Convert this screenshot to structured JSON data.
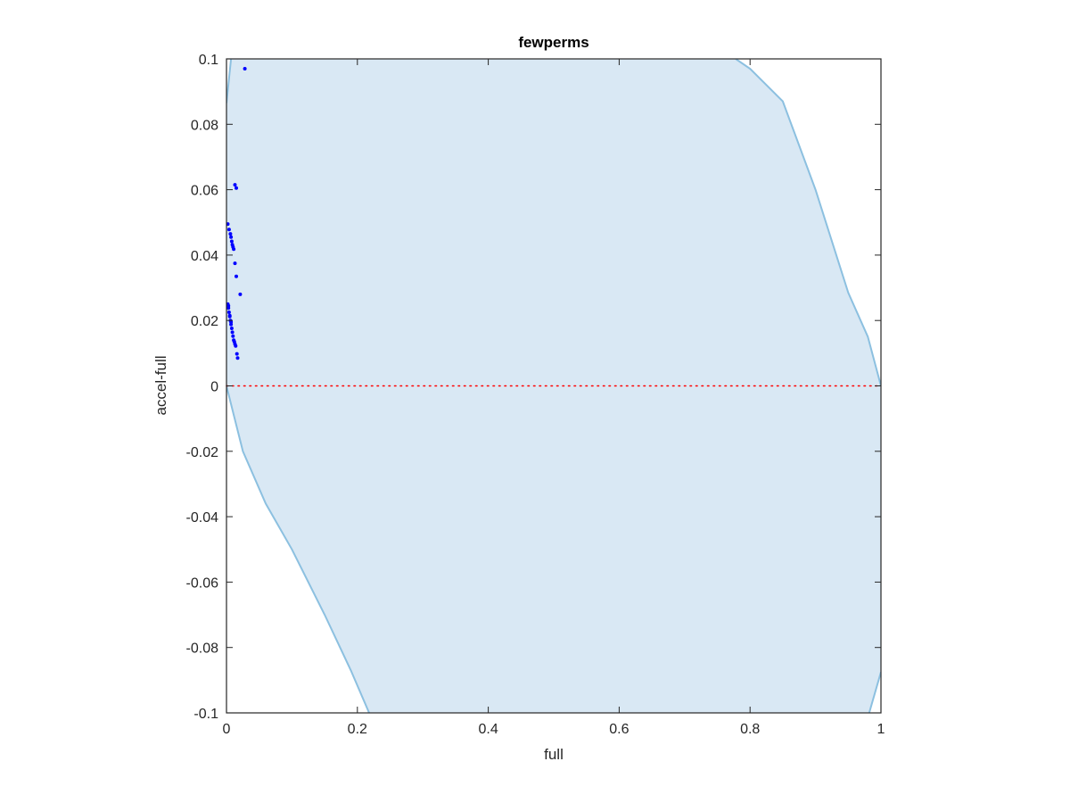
{
  "chart_data": {
    "type": "scatter",
    "title": "fewperms",
    "xlabel": "full",
    "ylabel": "accel-full",
    "xlim": [
      0,
      1
    ],
    "ylim": [
      -0.1,
      0.1
    ],
    "grid": false,
    "box": true,
    "x_ticks": [
      0,
      0.2,
      0.4,
      0.6,
      0.8,
      1
    ],
    "x_tick_labels": [
      "0",
      "0.2",
      "0.4",
      "0.6",
      "0.8",
      "1"
    ],
    "y_ticks": [
      -0.1,
      -0.08,
      -0.06,
      -0.04,
      -0.02,
      0,
      0.02,
      0.04,
      0.06,
      0.08,
      0.1
    ],
    "y_tick_labels": [
      "-0.1",
      "-0.08",
      "-0.06",
      "-0.04",
      "-0.02",
      "0",
      "0.02",
      "0.04",
      "0.06",
      "0.08",
      "0.1"
    ],
    "colors": {
      "points": "#0000ff",
      "region_fill": "#d9e8f4",
      "region_edge": "#8cc0e0",
      "zero_line": "#ff0000",
      "axes": "#262626"
    },
    "feasible_region": {
      "upper_left_boundary": [
        [
          0.0,
          0.0865
        ],
        [
          0.007,
          0.1
        ]
      ],
      "right_boundary": [
        [
          0.778,
          0.1
        ],
        [
          0.8,
          0.097
        ],
        [
          0.85,
          0.087
        ],
        [
          0.9,
          0.06
        ],
        [
          0.95,
          0.0285
        ],
        [
          0.98,
          0.015
        ],
        [
          1.0,
          0.0
        ]
      ],
      "lower_left_boundary": [
        [
          0.0,
          0.0
        ],
        [
          0.01,
          -0.008
        ],
        [
          0.025,
          -0.02
        ],
        [
          0.06,
          -0.036
        ],
        [
          0.1,
          -0.05
        ],
        [
          0.15,
          -0.07
        ],
        [
          0.19,
          -0.087
        ],
        [
          0.218,
          -0.1
        ]
      ],
      "lower_right_boundary": [
        [
          0.982,
          -0.1
        ],
        [
          1.0,
          -0.0875
        ]
      ]
    },
    "reference_line": {
      "y": 0,
      "style": "dotted"
    },
    "series": [
      {
        "x": [
          0.028,
          0.013,
          0.015,
          0.002,
          0.004,
          0.006,
          0.007,
          0.008,
          0.009,
          0.01,
          0.011,
          0.013,
          0.015,
          0.021,
          0.002,
          0.003,
          0.004,
          0.005,
          0.006,
          0.007,
          0.008,
          0.009,
          0.01,
          0.011,
          0.012,
          0.013,
          0.014,
          0.016,
          0.017,
          0.003,
          0.005,
          0.007
        ],
        "y": [
          0.097,
          0.0615,
          0.0605,
          0.0495,
          0.0478,
          0.0465,
          0.0455,
          0.0442,
          0.0432,
          0.0425,
          0.0418,
          0.0375,
          0.0335,
          0.028,
          0.025,
          0.0238,
          0.0225,
          0.0212,
          0.02,
          0.0188,
          0.0176,
          0.0164,
          0.0152,
          0.014,
          0.0135,
          0.0128,
          0.0122,
          0.0098,
          0.0085,
          0.0245,
          0.0215,
          0.0195
        ]
      }
    ]
  }
}
